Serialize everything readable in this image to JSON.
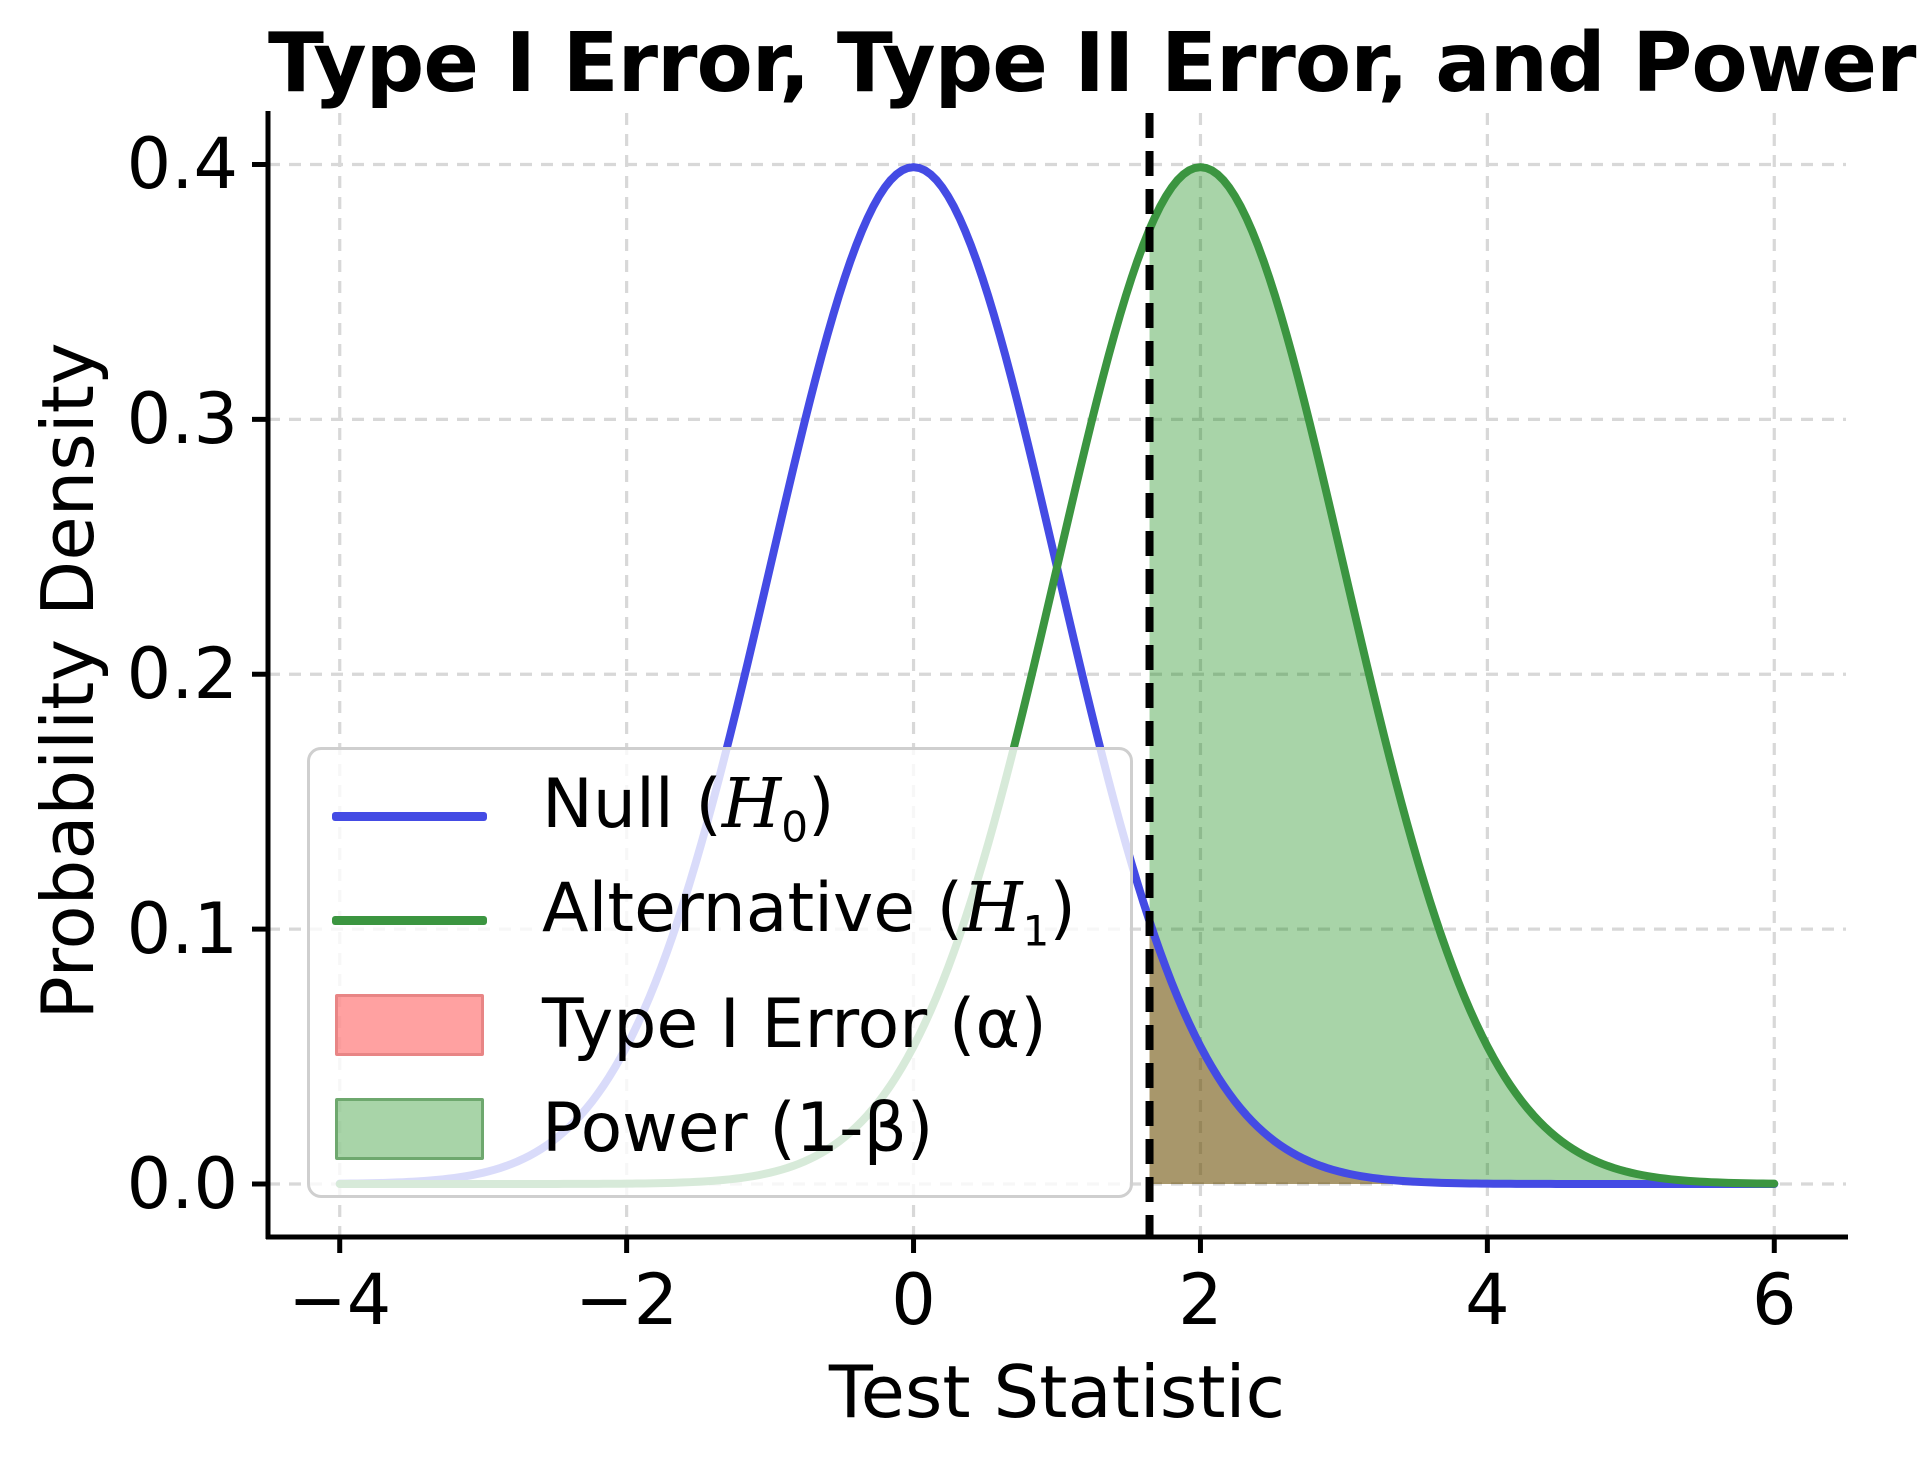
{
  "title": "Type I Error, Type II Error, and Power",
  "axes": {
    "xlabel": "Test Statistic",
    "ylabel": "Probability Density",
    "xtick_labels": [
      "−4",
      "−2",
      "0",
      "2",
      "4",
      "6"
    ],
    "ytick_labels": [
      "0.0",
      "0.1",
      "0.2",
      "0.3",
      "0.4"
    ]
  },
  "legend": {
    "items": [
      {
        "type": "line",
        "color": "#444be4",
        "label": "Null (H₀)"
      },
      {
        "type": "line",
        "color": "#3b9540",
        "label": "Alternative (H₁)"
      },
      {
        "type": "patch",
        "fill": "rgba(255,0,0,0.37)",
        "border": "#e88585",
        "label": "Type I Error (α)"
      },
      {
        "type": "patch",
        "fill": "rgba(0,128,0,0.34)",
        "border": "#6ea86e",
        "label": "Power (1-β)"
      }
    ]
  },
  "chart_data": {
    "type": "line",
    "title": "Type I Error, Type II Error, and Power",
    "xlabel": "Test Statistic",
    "ylabel": "Probability Density",
    "xlim": [
      -4.5,
      6.5
    ],
    "ylim": [
      -0.0208,
      0.4202
    ],
    "xticks": [
      -4,
      -2,
      0,
      2,
      4,
      6
    ],
    "yticks": [
      0.0,
      0.1,
      0.2,
      0.3,
      0.4
    ],
    "grid": true,
    "grid_style": "dashed",
    "legend_position": "lower left",
    "curve_range": [
      -4,
      6
    ],
    "peak_density": 0.3989,
    "critical_value": 1.645,
    "series": [
      {
        "name": "Null (H₀)",
        "distribution": "normal",
        "mean": 0,
        "sd": 1,
        "color": "#444be4",
        "linewidth": 8
      },
      {
        "name": "Alternative (H₁)",
        "distribution": "normal",
        "mean": 2,
        "sd": 1,
        "color": "#3b9540",
        "linewidth": 8
      }
    ],
    "regions": [
      {
        "name": "Type I Error (α)",
        "under": "Null (H₀)",
        "from": 1.645,
        "to": 6,
        "fill": "#ff0000",
        "opacity": 0.36
      },
      {
        "name": "Power (1-β)",
        "under": "Alternative (H₁)",
        "from": 1.645,
        "to": 6,
        "fill": "#008000",
        "opacity": 0.34
      }
    ],
    "critical_line": {
      "x": 1.645,
      "color": "#000000",
      "style": "dashed",
      "linewidth": 8
    }
  },
  "colors": {
    "null_curve": "#444be4",
    "alt_curve": "#3b9540",
    "type1_fill": "#ff0000",
    "power_fill": "#008000",
    "grid": "#d8d8d8",
    "spine": "#000000"
  }
}
